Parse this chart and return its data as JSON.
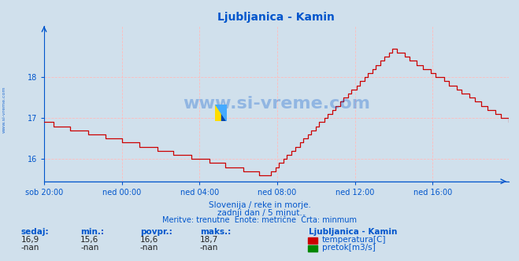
{
  "title": "Ljubljanica - Kamin",
  "bg_color": "#d0e0ec",
  "line_color": "#cc0000",
  "line_color2": "#008800",
  "x_labels": [
    "sob 20:00",
    "ned 00:00",
    "ned 04:00",
    "ned 08:00",
    "ned 12:00",
    "ned 16:00"
  ],
  "x_tick_pos": [
    0,
    48,
    96,
    144,
    192,
    240
  ],
  "y_ticks": [
    16,
    17,
    18
  ],
  "y_min": 15.45,
  "y_max": 19.25,
  "grid_color": "#ffbbbb",
  "axis_color": "#0055cc",
  "title_color": "#0055cc",
  "watermark": "www.si-vreme.com",
  "watermark_color": "#0055cc",
  "subtitle1": "Slovenija / reke in morje.",
  "subtitle2": "zadnji dan / 5 minut.",
  "subtitle3": "Meritve: trenutne  Enote: metrične  Črta: minmum",
  "subtitle_color": "#0055cc",
  "legend_title": "Ljubljanica - Kamin",
  "legend_color1": "#cc0000",
  "legend_color2": "#008800",
  "legend_label1": "temperatura[C]",
  "legend_label2": "pretok[m3/s]",
  "stat_labels": [
    "sedaj:",
    "min.:",
    "povpr.:",
    "maks.:"
  ],
  "stat_values_temp": [
    "16,9",
    "15,6",
    "16,6",
    "18,7"
  ],
  "stat_values_flow": [
    "-nan",
    "-nan",
    "-nan",
    "-nan"
  ]
}
